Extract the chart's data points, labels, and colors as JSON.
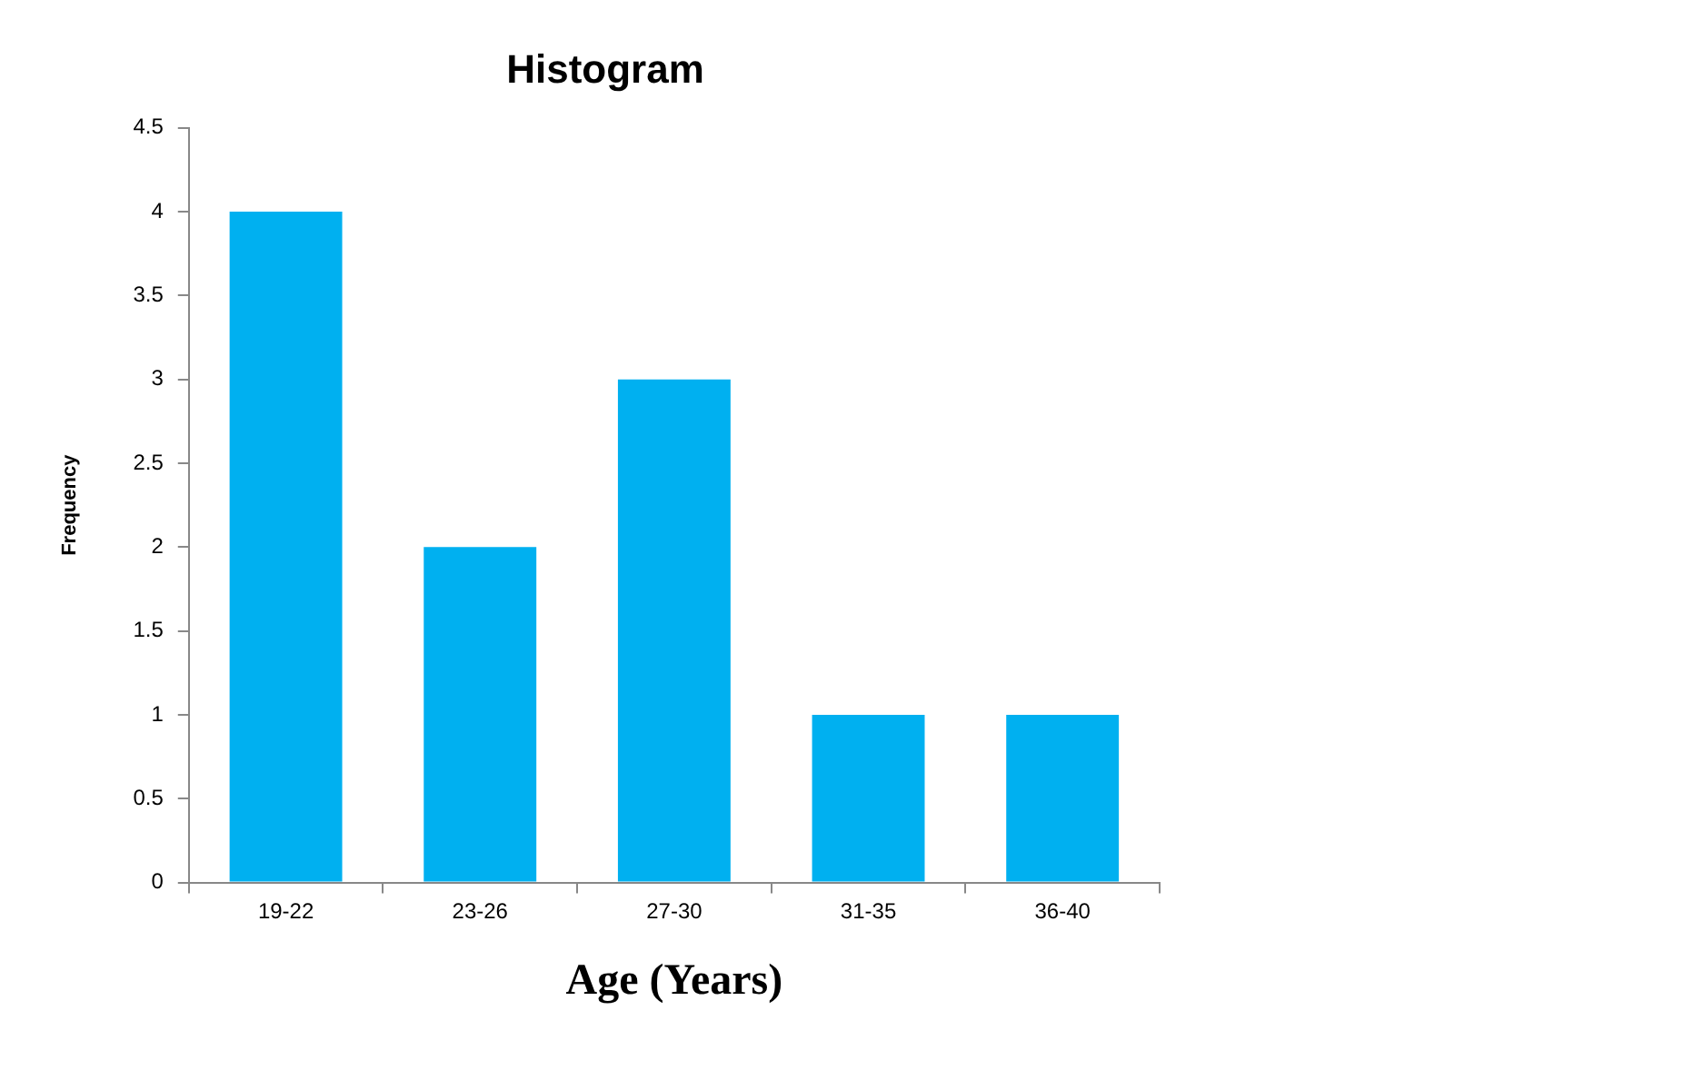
{
  "chart_data": {
    "type": "bar",
    "title": "Histogram",
    "xlabel": "Age (Years)",
    "ylabel": "Frequency",
    "categories": [
      "19-22",
      "23-26",
      "27-30",
      "31-35",
      "36-40"
    ],
    "values": [
      4,
      2,
      3,
      1,
      1
    ],
    "color": "#00b0f0",
    "ylim": [
      0,
      4.5
    ],
    "yticks": [
      0,
      0.5,
      1,
      1.5,
      2,
      2.5,
      3,
      3.5,
      4,
      4.5
    ]
  }
}
